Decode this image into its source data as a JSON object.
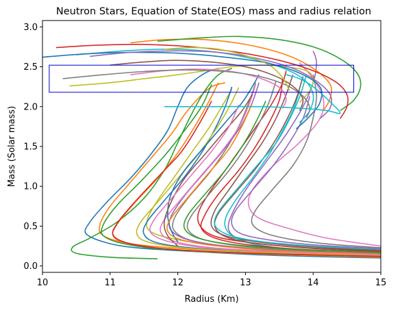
{
  "chart_data": {
    "type": "line",
    "title": "Neutron Stars, Equation of State(EOS) mass and radius relation",
    "xlabel": "Radius (Km)",
    "ylabel": "Mass (Solar mass)",
    "xlim": [
      10,
      15
    ],
    "ylim": [
      -0.08,
      3.08
    ],
    "xticks": [
      "10",
      "11",
      "12",
      "13",
      "14",
      "15"
    ],
    "yticks": [
      "0.0",
      "0.5",
      "1.0",
      "1.5",
      "2.0",
      "2.5",
      "3.0"
    ],
    "grid": false,
    "legend": "none",
    "colors": [
      "#1f77b4",
      "#ff7f0e",
      "#2ca02c",
      "#d62728",
      "#9467bd",
      "#8c564b",
      "#e377c2",
      "#7f7f7f",
      "#bcbd22",
      "#17becf"
    ],
    "highlight_box": {
      "x": [
        10.1,
        14.6
      ],
      "y": [
        2.18,
        2.52
      ],
      "color": "#0000cc"
    },
    "series": [
      {
        "x": [
          15.0,
          13.5,
          12.5,
          11.5,
          11.0,
          10.65,
          10.7,
          10.95,
          11.3,
          11.6,
          11.85,
          12.0,
          12.15,
          12.4,
          12.6
        ],
        "y": [
          0.1,
          0.13,
          0.17,
          0.22,
          0.28,
          0.4,
          0.55,
          0.8,
          1.1,
          1.4,
          1.7,
          2.0,
          2.25,
          2.42,
          2.48
        ]
      },
      {
        "x": [
          15.0,
          13.5,
          12.2,
          11.3,
          10.9,
          10.85,
          11.0,
          11.3,
          11.6,
          11.9,
          12.1,
          12.3,
          12.5,
          12.7
        ],
        "y": [
          0.12,
          0.16,
          0.21,
          0.28,
          0.38,
          0.52,
          0.75,
          1.05,
          1.35,
          1.65,
          1.9,
          2.1,
          2.25,
          2.3
        ]
      },
      {
        "x": [
          11.7,
          11.0,
          10.5,
          10.45,
          10.7,
          11.1,
          11.5,
          11.8,
          12.0,
          12.2,
          12.4,
          12.6,
          12.8
        ],
        "y": [
          0.09,
          0.11,
          0.16,
          0.24,
          0.35,
          0.55,
          0.85,
          1.2,
          1.55,
          1.9,
          2.2,
          2.4,
          2.48
        ]
      },
      {
        "x": [
          15.0,
          14.0,
          13.2,
          12.6,
          12.35,
          12.3,
          12.45,
          12.7,
          12.95,
          13.2,
          13.4,
          13.55,
          13.6
        ],
        "y": [
          0.18,
          0.22,
          0.28,
          0.36,
          0.48,
          0.65,
          0.9,
          1.2,
          1.5,
          1.8,
          2.05,
          2.3,
          2.45
        ]
      },
      {
        "x": [
          15.0,
          14.0,
          13.3,
          12.9,
          12.75,
          12.8,
          13.0,
          13.3,
          13.6,
          13.85,
          14.0,
          14.05,
          14.0
        ],
        "y": [
          0.15,
          0.19,
          0.25,
          0.34,
          0.46,
          0.65,
          0.95,
          1.3,
          1.65,
          2.0,
          2.3,
          2.55,
          2.7
        ]
      },
      {
        "x": [
          15.0,
          14.0,
          13.2,
          12.7,
          12.5,
          12.55,
          12.75,
          13.0,
          13.25,
          13.45,
          13.6,
          13.7
        ],
        "y": [
          0.2,
          0.24,
          0.3,
          0.38,
          0.5,
          0.7,
          0.95,
          1.25,
          1.55,
          1.85,
          2.15,
          2.4
        ]
      },
      {
        "x": [
          15.0,
          14.2,
          13.6,
          13.2,
          13.05,
          13.1,
          13.4,
          13.8,
          14.1,
          14.15,
          14.0,
          13.8
        ],
        "y": [
          0.25,
          0.35,
          0.48,
          0.6,
          0.75,
          0.95,
          1.25,
          1.55,
          1.85,
          2.1,
          2.35,
          2.55
        ]
      },
      {
        "x": [
          15.0,
          13.8,
          12.8,
          12.2,
          11.95,
          11.95,
          12.15,
          12.45,
          12.7,
          12.9,
          13.05,
          13.15
        ],
        "y": [
          0.14,
          0.18,
          0.24,
          0.32,
          0.44,
          0.6,
          0.85,
          1.15,
          1.45,
          1.75,
          2.05,
          2.3
        ]
      },
      {
        "x": [
          15.0,
          13.6,
          12.6,
          12.0,
          11.6,
          11.55,
          11.7,
          11.95,
          12.2,
          12.45,
          12.65,
          12.8
        ],
        "y": [
          0.16,
          0.2,
          0.26,
          0.33,
          0.43,
          0.58,
          0.82,
          1.12,
          1.42,
          1.72,
          2.0,
          2.22
        ]
      },
      {
        "x": [
          15.0,
          14.2,
          13.5,
          13.0,
          12.75,
          12.7,
          12.85,
          13.1,
          13.35,
          13.55,
          13.7,
          13.8
        ],
        "y": [
          0.12,
          0.16,
          0.22,
          0.3,
          0.42,
          0.58,
          0.82,
          1.1,
          1.4,
          1.7,
          1.95,
          2.2
        ]
      },
      {
        "x": [
          15.0,
          13.4,
          12.3,
          11.7,
          11.5,
          11.55,
          11.8,
          12.1,
          12.35,
          12.55,
          12.7,
          12.8
        ],
        "y": [
          0.13,
          0.17,
          0.22,
          0.29,
          0.4,
          0.56,
          0.82,
          1.12,
          1.42,
          1.72,
          2.0,
          2.25
        ]
      },
      {
        "x": [
          15.0,
          13.2,
          12.0,
          11.3,
          11.05,
          11.1,
          11.35,
          11.7,
          12.0,
          12.25,
          12.45,
          12.6
        ],
        "y": [
          0.11,
          0.15,
          0.2,
          0.27,
          0.37,
          0.52,
          0.78,
          1.1,
          1.42,
          1.75,
          2.05,
          2.3
        ]
      },
      {
        "x": [
          15.0,
          13.0,
          11.8,
          11.2,
          10.9,
          10.9,
          11.1,
          11.45,
          11.8,
          12.1,
          12.35,
          12.5
        ],
        "y": [
          0.12,
          0.16,
          0.21,
          0.28,
          0.38,
          0.52,
          0.76,
          1.06,
          1.38,
          1.7,
          2.0,
          2.28
        ]
      },
      {
        "x": [
          15.0,
          13.8,
          13.0,
          12.55,
          12.35,
          12.4,
          12.6,
          12.9,
          13.15,
          13.35,
          13.5,
          13.55
        ],
        "y": [
          0.17,
          0.21,
          0.27,
          0.35,
          0.47,
          0.64,
          0.9,
          1.2,
          1.5,
          1.8,
          2.08,
          2.35
        ]
      },
      {
        "x": [
          15.0,
          13.6,
          12.7,
          12.15,
          11.9,
          11.9,
          12.1,
          12.4,
          12.7,
          12.95,
          13.1,
          13.2
        ],
        "y": [
          0.15,
          0.19,
          0.25,
          0.33,
          0.45,
          0.62,
          0.88,
          1.18,
          1.48,
          1.78,
          2.05,
          2.3
        ]
      },
      {
        "x": [
          15.0,
          13.9,
          13.1,
          12.7,
          12.55,
          12.6,
          12.85,
          13.15,
          13.4,
          13.6,
          13.75,
          13.85
        ],
        "y": [
          0.19,
          0.23,
          0.29,
          0.37,
          0.49,
          0.66,
          0.92,
          1.22,
          1.52,
          1.82,
          2.1,
          2.38
        ]
      },
      {
        "x": [
          15.0,
          13.5,
          12.5,
          11.95,
          11.75,
          11.8,
          12.05,
          12.35,
          12.65,
          12.9,
          13.05,
          13.15
        ],
        "y": [
          0.14,
          0.18,
          0.23,
          0.31,
          0.42,
          0.58,
          0.84,
          1.14,
          1.44,
          1.74,
          2.02,
          2.28
        ]
      },
      {
        "x": [
          15.0,
          13.7,
          12.85,
          12.35,
          12.15,
          12.2,
          12.45,
          12.75,
          13.0,
          13.2,
          13.35,
          13.45
        ],
        "y": [
          0.16,
          0.2,
          0.26,
          0.34,
          0.46,
          0.63,
          0.89,
          1.19,
          1.49,
          1.79,
          2.06,
          2.32
        ]
      },
      {
        "x": [
          15.0,
          13.3,
          12.2,
          11.6,
          11.4,
          11.45,
          11.7,
          12.0,
          12.3,
          12.55,
          12.75,
          12.9
        ],
        "y": [
          0.13,
          0.17,
          0.22,
          0.29,
          0.39,
          0.55,
          0.8,
          1.1,
          1.4,
          1.7,
          1.98,
          2.24
        ]
      },
      {
        "x": [
          15.0,
          14.0,
          13.2,
          12.75,
          12.55,
          12.6,
          12.85,
          13.15,
          13.45,
          13.65,
          13.8,
          13.9
        ],
        "y": [
          0.21,
          0.25,
          0.31,
          0.39,
          0.51,
          0.68,
          0.94,
          1.24,
          1.54,
          1.84,
          2.12,
          2.4
        ]
      },
      {
        "x": [
          12.0,
          11.9,
          11.85,
          11.9,
          12.1,
          12.4,
          12.7,
          12.95,
          13.1,
          13.2
        ],
        "y": [
          0.3,
          0.45,
          0.65,
          0.9,
          1.2,
          1.5,
          1.8,
          2.05,
          2.25,
          2.4
        ]
      },
      {
        "x": [
          15.0,
          13.5,
          12.6,
          12.05,
          11.85,
          11.9,
          12.15,
          12.45,
          12.75,
          12.95,
          13.1
        ],
        "y": [
          0.15,
          0.19,
          0.25,
          0.33,
          0.44,
          0.6,
          0.86,
          1.16,
          1.46,
          1.76,
          2.04
        ]
      },
      {
        "x": [
          15.0,
          13.7,
          12.8,
          12.3,
          12.1,
          12.15,
          12.4,
          12.7,
          12.95,
          13.15,
          13.3
        ],
        "y": [
          0.17,
          0.21,
          0.27,
          0.35,
          0.47,
          0.64,
          0.9,
          1.2,
          1.5,
          1.8,
          2.07
        ]
      },
      {
        "x": [
          15.0,
          13.1,
          11.9,
          11.3,
          11.05,
          11.1,
          11.35,
          11.7,
          12.05,
          12.3,
          12.5
        ],
        "y": [
          0.12,
          0.16,
          0.21,
          0.28,
          0.38,
          0.53,
          0.79,
          1.11,
          1.43,
          1.76,
          2.07
        ]
      },
      {
        "x": [
          15.0,
          14.1,
          13.4,
          12.95,
          12.8,
          12.85,
          13.1,
          13.4,
          13.65,
          13.85,
          13.95
        ],
        "y": [
          0.22,
          0.26,
          0.32,
          0.4,
          0.52,
          0.69,
          0.95,
          1.25,
          1.55,
          1.85,
          2.13
        ]
      },
      {
        "x": [
          12.0,
          11.85,
          11.8,
          11.9,
          12.1,
          12.4,
          12.7,
          12.95,
          13.1
        ],
        "y": [
          0.25,
          0.38,
          0.55,
          0.8,
          1.1,
          1.4,
          1.7,
          1.95,
          2.15
        ]
      },
      {
        "x": [
          15.0,
          13.4,
          12.4,
          11.85,
          11.6,
          11.65,
          11.9,
          12.2,
          12.5,
          12.75,
          12.9
        ],
        "y": [
          0.14,
          0.18,
          0.23,
          0.31,
          0.42,
          0.58,
          0.84,
          1.14,
          1.44,
          1.74,
          2.02
        ]
      },
      {
        "x": [
          15.0,
          14.3,
          13.7,
          13.3,
          13.1,
          13.15,
          13.4,
          13.7,
          13.9,
          14.0,
          14.05,
          14.0
        ],
        "y": [
          0.23,
          0.27,
          0.33,
          0.41,
          0.53,
          0.7,
          0.96,
          1.26,
          1.56,
          1.86,
          2.14,
          2.4
        ]
      },
      {
        "x": [
          10.4,
          11.0,
          11.5,
          12.0,
          12.4,
          12.8,
          13.2,
          13.6,
          13.9,
          14.0,
          13.95,
          13.8
        ],
        "y": [
          2.26,
          2.3,
          2.35,
          2.4,
          2.45,
          2.5,
          2.52,
          2.5,
          2.45,
          2.35,
          2.2,
          2.05
        ]
      },
      {
        "x": [
          10.5,
          11.2,
          11.8,
          12.4,
          13.0,
          13.5,
          13.85,
          14.0,
          13.95,
          13.8
        ],
        "y": [
          2.65,
          2.7,
          2.72,
          2.7,
          2.62,
          2.5,
          2.35,
          2.15,
          1.95,
          1.8
        ]
      },
      {
        "x": [
          10.0,
          10.6,
          11.3,
          12.0,
          12.7,
          13.3,
          13.8,
          14.1,
          14.1,
          13.95,
          13.75
        ],
        "y": [
          2.62,
          2.66,
          2.68,
          2.67,
          2.62,
          2.55,
          2.42,
          2.25,
          2.05,
          1.88,
          1.72
        ]
      },
      {
        "x": [
          11.3,
          11.8,
          12.4,
          13.0,
          13.6,
          14.0,
          14.25,
          14.25,
          14.15
        ],
        "y": [
          2.8,
          2.84,
          2.84,
          2.78,
          2.65,
          2.48,
          2.28,
          2.1,
          1.95
        ]
      },
      {
        "x": [
          11.7,
          12.3,
          12.9,
          13.5,
          14.0,
          14.4,
          14.65,
          14.7,
          14.6,
          14.4
        ],
        "y": [
          2.82,
          2.86,
          2.88,
          2.84,
          2.75,
          2.6,
          2.42,
          2.25,
          2.08,
          1.95
        ]
      },
      {
        "x": [
          10.2,
          10.8,
          11.5,
          12.2,
          12.9,
          13.5,
          14.0,
          14.35,
          14.5,
          14.5,
          14.4
        ],
        "y": [
          2.74,
          2.77,
          2.78,
          2.75,
          2.68,
          2.58,
          2.45,
          2.3,
          2.15,
          2.0,
          1.85
        ]
      },
      {
        "x": [
          10.7,
          11.3,
          12.0,
          12.6,
          13.2,
          13.7,
          14.05,
          14.25,
          14.25,
          14.1
        ],
        "y": [
          2.63,
          2.68,
          2.7,
          2.68,
          2.6,
          2.48,
          2.32,
          2.15,
          1.98,
          1.85
        ]
      },
      {
        "x": [
          11.0,
          11.5,
          12.0,
          12.6,
          13.1,
          13.5,
          13.75,
          13.85,
          13.8
        ],
        "y": [
          2.52,
          2.56,
          2.58,
          2.55,
          2.48,
          2.36,
          2.22,
          2.08,
          1.95
        ]
      },
      {
        "x": [
          11.3,
          11.8,
          12.3,
          12.8,
          13.2,
          13.5,
          13.6,
          13.55
        ],
        "y": [
          2.4,
          2.45,
          2.47,
          2.44,
          2.36,
          2.24,
          2.1,
          1.98
        ]
      },
      {
        "x": [
          10.3,
          10.9,
          11.5,
          12.1,
          12.7,
          13.2,
          13.6,
          13.85,
          13.95,
          13.9
        ],
        "y": [
          2.35,
          2.4,
          2.44,
          2.46,
          2.44,
          2.38,
          2.27,
          2.13,
          1.98,
          1.86
        ]
      },
      {
        "x": [
          11.8,
          12.2,
          12.6,
          13.0,
          13.35,
          13.55,
          13.65
        ],
        "y": [
          2.72,
          2.74,
          2.72,
          2.64,
          2.52,
          2.36,
          2.2
        ]
      },
      {
        "x": [
          11.8,
          12.5,
          13.2,
          13.8,
          14.2,
          14.4,
          14.2,
          14.0,
          13.8,
          13.6
        ],
        "y": [
          2.0,
          2.0,
          2.0,
          1.98,
          1.95,
          1.92,
          2.1,
          2.25,
          2.35,
          2.4
        ]
      }
    ]
  }
}
